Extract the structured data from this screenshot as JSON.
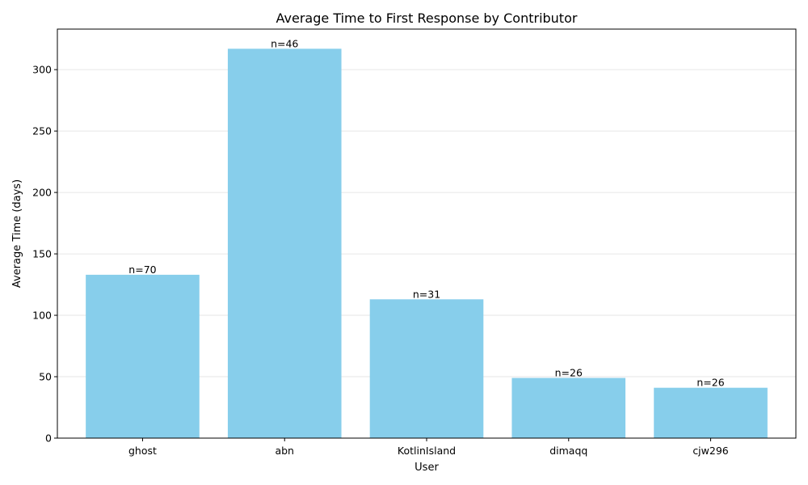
{
  "chart_data": {
    "type": "bar",
    "title": "Average Time to First Response by Contributor",
    "xlabel": "User",
    "ylabel": "Average Time (days)",
    "categories": [
      "ghost",
      "abn",
      "KotlinIsland",
      "dimaqq",
      "cjw296"
    ],
    "values": [
      133,
      317,
      113,
      49,
      41
    ],
    "bar_labels": [
      "n=70",
      "n=46",
      "n=31",
      "n=26",
      "n=26"
    ],
    "ylim": [
      0,
      333
    ],
    "yticks": [
      0,
      50,
      100,
      150,
      200,
      250,
      300
    ],
    "grid": "y",
    "bar_color": "#87ceeb"
  }
}
